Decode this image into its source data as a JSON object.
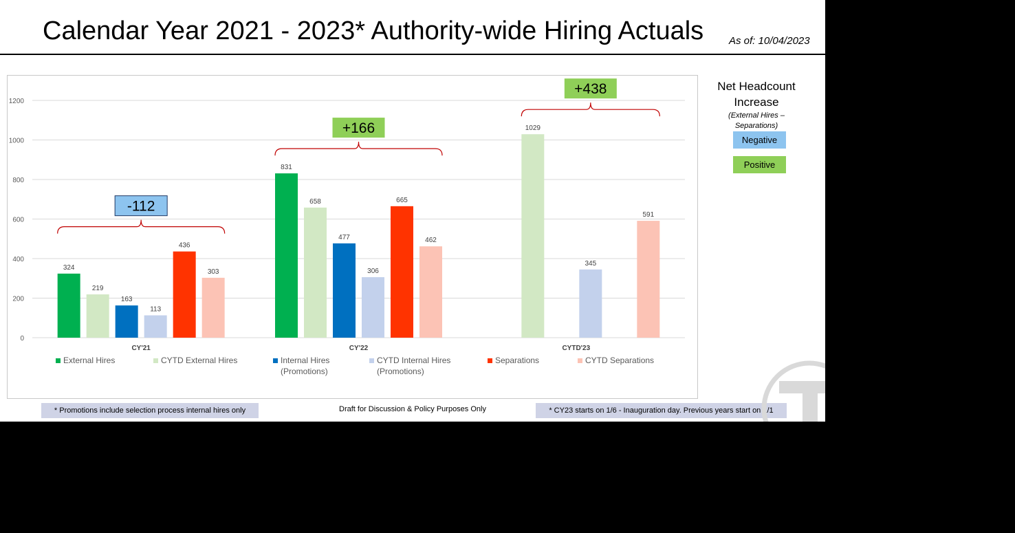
{
  "header": {
    "title": "Calendar Year 2021 - 2023* Authority-wide Hiring Actuals",
    "as_of": "As of: 10/04/2023"
  },
  "side_legend": {
    "title_line1": "Net Headcount",
    "title_line2": "Increase",
    "sub_line1": "(External Hires –",
    "sub_line2": "Separations)",
    "negative_label": "Negative",
    "positive_label": "Positive",
    "negative_color": "#8dc4ef",
    "positive_color": "#8fcf58"
  },
  "footer": {
    "note_left": "* Promotions include selection process internal hires only",
    "draft": "Draft for Discussion & Policy Purposes Only",
    "note_right": "* CY23 starts on 1/6 - Inauguration day. Previous years start on 1/1"
  },
  "chart_data": {
    "type": "bar",
    "categories": [
      "CY'21",
      "CY'22",
      "CYTD'23"
    ],
    "ylim": [
      0,
      1200
    ],
    "yticks": [
      0,
      200,
      400,
      600,
      800,
      1000,
      1200
    ],
    "grid": true,
    "legend_position": "bottom",
    "series": [
      {
        "name": "External Hires",
        "color": "#00b050",
        "values": [
          324,
          831,
          null
        ]
      },
      {
        "name": "CYTD External Hires",
        "color": "#d2e8c4",
        "values": [
          219,
          658,
          1029
        ]
      },
      {
        "name": "Internal Hires\n(Promotions)",
        "color": "#0070c0",
        "values": [
          163,
          477,
          null
        ]
      },
      {
        "name": "CYTD Internal Hires\n(Promotions)",
        "color": "#c3d1ec",
        "values": [
          113,
          306,
          345
        ]
      },
      {
        "name": "Separations",
        "color": "#ff3300",
        "values": [
          436,
          665,
          null
        ]
      },
      {
        "name": "CYTD Separations",
        "color": "#fcc3b5",
        "values": [
          303,
          462,
          591
        ]
      }
    ],
    "annotations": [
      {
        "category": "CY'21",
        "label": "-112",
        "sign": "negative"
      },
      {
        "category": "CY'22",
        "label": "+166",
        "sign": "positive"
      },
      {
        "category": "CYTD'23",
        "label": "+438",
        "sign": "positive"
      }
    ]
  }
}
